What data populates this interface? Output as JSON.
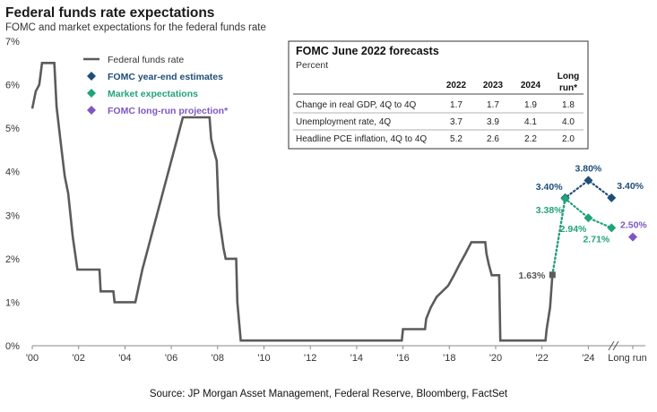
{
  "title": "Federal funds rate expectations",
  "subtitle": "FOMC and market expectations for the federal funds rate",
  "source": "Source: JP Morgan Asset Management, Federal Reserve, Bloomberg, FactSet",
  "colors": {
    "fed_funds": "#5b5b5b",
    "fomc": "#1f4e79",
    "market": "#21a37a",
    "longrun": "#7e57c2",
    "axis": "#888888"
  },
  "chart_data": {
    "type": "line",
    "ylim": [
      0,
      7
    ],
    "y_ticks": [
      0,
      1,
      2,
      3,
      4,
      5,
      6,
      7
    ],
    "y_tick_labels": [
      "0%",
      "1%",
      "2%",
      "3%",
      "4%",
      "5%",
      "6%",
      "7%"
    ],
    "x_tick_values": [
      2000,
      2002,
      2004,
      2006,
      2008,
      2010,
      2012,
      2014,
      2016,
      2018,
      2020,
      2022,
      2024
    ],
    "x_tick_labels": [
      "'00",
      "'02",
      "'04",
      "'06",
      "'08",
      "'10",
      "'12",
      "'14",
      "'16",
      "'18",
      "'20",
      "'22",
      "'24"
    ],
    "long_run_label": "Long run",
    "legend_position": "top-left",
    "legend": [
      {
        "key": "fed_funds",
        "label": "Federal funds rate"
      },
      {
        "key": "fomc",
        "label": "FOMC year-end estimates"
      },
      {
        "key": "market",
        "label": "Market expectations"
      },
      {
        "key": "longrun",
        "label": "FOMC long-run projection*"
      }
    ],
    "series": [
      {
        "name": "Federal funds rate",
        "key": "fed_funds",
        "points": [
          [
            2000.0,
            5.45
          ],
          [
            2000.15,
            5.85
          ],
          [
            2000.3,
            6.0
          ],
          [
            2000.42,
            6.5
          ],
          [
            2000.95,
            6.5
          ],
          [
            2001.05,
            5.5
          ],
          [
            2001.2,
            4.8
          ],
          [
            2001.4,
            3.9
          ],
          [
            2001.55,
            3.5
          ],
          [
            2001.75,
            2.5
          ],
          [
            2001.95,
            1.75
          ],
          [
            2002.9,
            1.75
          ],
          [
            2002.95,
            1.25
          ],
          [
            2003.5,
            1.25
          ],
          [
            2003.55,
            1.0
          ],
          [
            2004.45,
            1.0
          ],
          [
            2004.55,
            1.25
          ],
          [
            2004.75,
            1.75
          ],
          [
            2005.0,
            2.25
          ],
          [
            2005.25,
            2.75
          ],
          [
            2005.5,
            3.25
          ],
          [
            2005.75,
            3.75
          ],
          [
            2006.0,
            4.25
          ],
          [
            2006.25,
            4.75
          ],
          [
            2006.5,
            5.25
          ],
          [
            2007.65,
            5.25
          ],
          [
            2007.72,
            4.75
          ],
          [
            2007.83,
            4.5
          ],
          [
            2007.96,
            4.25
          ],
          [
            2008.05,
            3.0
          ],
          [
            2008.25,
            2.25
          ],
          [
            2008.35,
            2.0
          ],
          [
            2008.8,
            2.0
          ],
          [
            2008.85,
            1.0
          ],
          [
            2009.0,
            0.12
          ],
          [
            2015.95,
            0.12
          ],
          [
            2016.0,
            0.38
          ],
          [
            2016.95,
            0.38
          ],
          [
            2017.0,
            0.62
          ],
          [
            2017.2,
            0.88
          ],
          [
            2017.45,
            1.12
          ],
          [
            2017.95,
            1.38
          ],
          [
            2018.2,
            1.62
          ],
          [
            2018.45,
            1.88
          ],
          [
            2018.7,
            2.12
          ],
          [
            2018.95,
            2.38
          ],
          [
            2019.55,
            2.38
          ],
          [
            2019.6,
            2.12
          ],
          [
            2019.7,
            1.88
          ],
          [
            2019.83,
            1.62
          ],
          [
            2020.15,
            1.62
          ],
          [
            2020.2,
            0.12
          ],
          [
            2022.15,
            0.12
          ],
          [
            2022.2,
            0.38
          ],
          [
            2022.35,
            0.88
          ],
          [
            2022.45,
            1.63
          ]
        ]
      },
      {
        "name": "FOMC year-end estimates",
        "key": "fomc",
        "points": [
          [
            2022.45,
            1.63
          ],
          [
            2023.0,
            3.4
          ],
          [
            2024.0,
            3.8
          ],
          [
            2025.0,
            3.4
          ]
        ],
        "labels": [
          "",
          "3.40%",
          "3.80%",
          "3.40%"
        ]
      },
      {
        "name": "Market expectations",
        "key": "market",
        "points": [
          [
            2022.45,
            1.63
          ],
          [
            2023.0,
            3.38
          ],
          [
            2024.0,
            2.94
          ],
          [
            2025.0,
            2.71
          ]
        ],
        "labels": [
          "",
          "3.38%",
          "2.94%",
          "2.71%"
        ]
      }
    ],
    "current_label": "1.63%",
    "long_run_point": {
      "value": 2.5,
      "label": "2.50%"
    }
  },
  "forecast_table": {
    "title": "FOMC June 2022 forecasts",
    "subtitle": "Percent",
    "headers": [
      "2022",
      "2023",
      "2024",
      "Long run*"
    ],
    "header_long_run_lines": [
      "Long",
      "run*"
    ],
    "rows": [
      {
        "label": "Change in real GDP, 4Q to 4Q",
        "values": [
          "1.7",
          "1.7",
          "1.9",
          "1.8"
        ]
      },
      {
        "label": "Unemployment rate, 4Q",
        "values": [
          "3.7",
          "3.9",
          "4.1",
          "4.0"
        ]
      },
      {
        "label": "Headline PCE inflation, 4Q to 4Q",
        "values": [
          "5.2",
          "2.6",
          "2.2",
          "2.0"
        ]
      }
    ]
  }
}
